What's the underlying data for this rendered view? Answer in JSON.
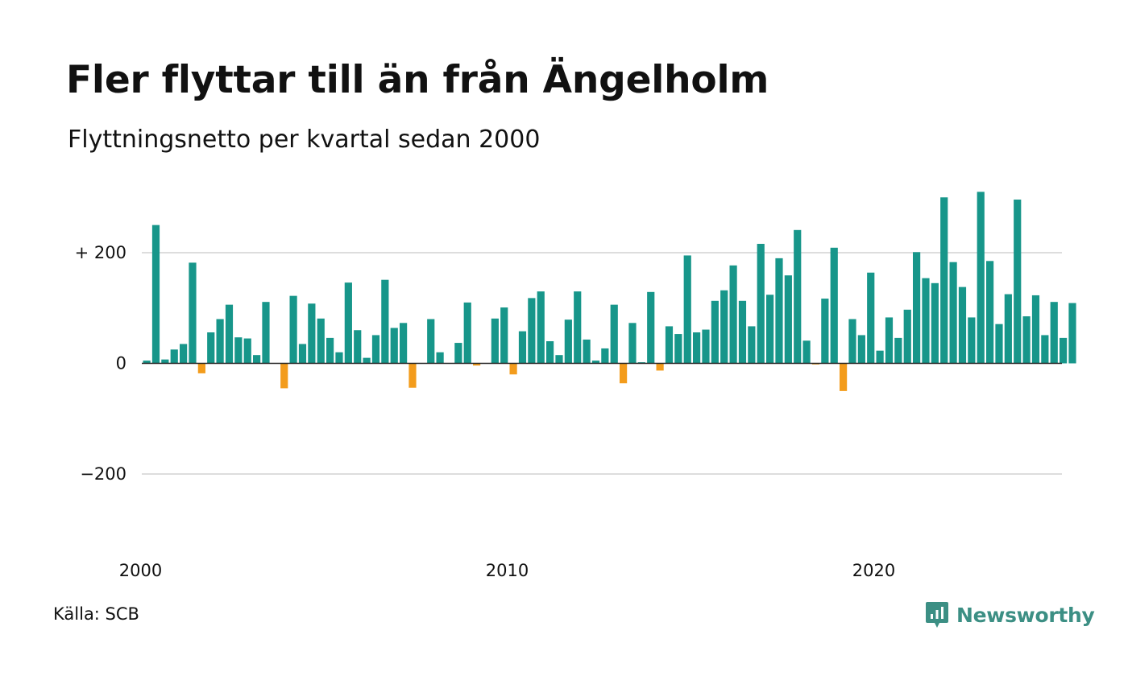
{
  "header": {
    "title": "Fler flyttar till än från Ängelholm",
    "subtitle": "Flyttningsnetto per kvartal sedan 2000"
  },
  "footer": {
    "source": "Källa: SCB",
    "brand": "Newsworthy",
    "brand_icon": "newsworthy-logo-icon"
  },
  "colors": {
    "positive": "#17968a",
    "negative": "#f39c1c",
    "grid": "#dddddd",
    "zero_line": "#222222",
    "brand": "#3c8f84"
  },
  "chart_data": {
    "type": "bar",
    "title": "Fler flyttar till än från Ängelholm",
    "subtitle": "Flyttningsnetto per kvartal sedan 2000",
    "xlabel": "",
    "ylabel": "",
    "x_start": "2000Q1",
    "x_ticks": [
      "2000",
      "2010",
      "2020"
    ],
    "y_ticks": [
      {
        "value": 200,
        "label": "+ 200"
      },
      {
        "value": 0,
        "label": "0"
      },
      {
        "value": -200,
        "label": "−200"
      }
    ],
    "ylim": [
      -345,
      315
    ],
    "grid": true,
    "values": [
      5,
      250,
      7,
      25,
      35,
      182,
      -18,
      56,
      80,
      106,
      47,
      45,
      15,
      111,
      0,
      -45,
      122,
      35,
      108,
      81,
      46,
      20,
      146,
      60,
      10,
      51,
      151,
      64,
      73,
      -44,
      0,
      80,
      20,
      0,
      37,
      110,
      -4,
      0,
      81,
      101,
      -20,
      58,
      118,
      130,
      40,
      15,
      79,
      130,
      43,
      5,
      27,
      106,
      -36,
      73,
      2,
      129,
      -13,
      67,
      53,
      195,
      56,
      61,
      113,
      132,
      177,
      113,
      67,
      216,
      124,
      190,
      159,
      241,
      41,
      -2,
      117,
      209,
      -50,
      80,
      51,
      164,
      23,
      83,
      46,
      97,
      201,
      154,
      145,
      300,
      183,
      138,
      83,
      310,
      185,
      71,
      125,
      296,
      85,
      123,
      51,
      111,
      46,
      109
    ]
  }
}
